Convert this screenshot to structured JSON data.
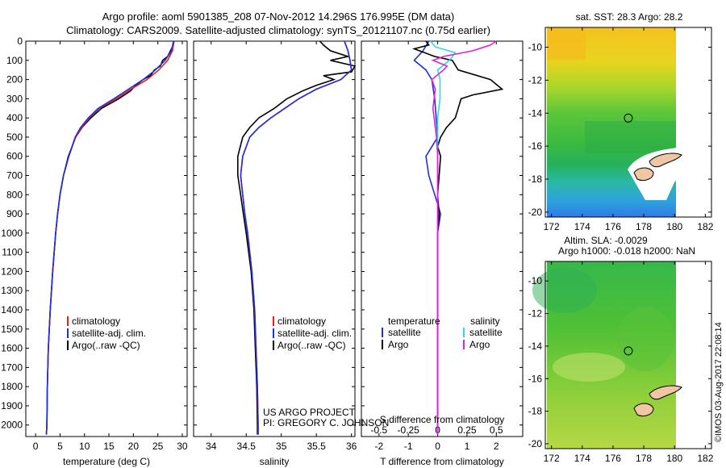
{
  "titles": {
    "line1": "Argo profile: aoml 5901385_208 07-Nov-2012 14.296S 176.995E (DM data)",
    "line2": "Climatology: CARS2009. Satellite-adjusted climatology: synTS_20121107.nc (0.75d earlier)"
  },
  "footer": {
    "project": "US ARGO PROJECT",
    "pi": "PI: GREGORY C. JOHNSON",
    "credit": "©IMOS 03-Aug-2017 22:08:14"
  },
  "depth_ticks": [
    "0",
    "100",
    "200",
    "300",
    "400",
    "500",
    "600",
    "700",
    "800",
    "900",
    "1000",
    "1100",
    "1200",
    "1300",
    "1400",
    "1500",
    "1600",
    "1700",
    "1800",
    "1900",
    "2000"
  ],
  "legend_tp": {
    "clim": "climatology",
    "sat": "satellite-adj. clim.",
    "argo": "Argo(..raw -QC)"
  },
  "legend_diff": {
    "temp_header": "temperature",
    "sal_header": "salinity",
    "satellite": "satellite",
    "argo": "Argo"
  },
  "colors": {
    "clim": "#e8201a",
    "sat": "#1f2ee0",
    "argo": "#000000",
    "sal_sat": "#33d8e6",
    "sal_argo": "#e020d8"
  },
  "chart_data": [
    {
      "type": "line",
      "xlabel": "temperature (deg C)",
      "ylabel": "",
      "xlim": [
        -2,
        31
      ],
      "ylim": [
        2060,
        0
      ],
      "x_ticks": [
        "0",
        "5",
        "10",
        "15",
        "20",
        "25",
        "30"
      ],
      "series": [
        {
          "name": "climatology",
          "depth": [
            0,
            50,
            100,
            150,
            200,
            250,
            300,
            350,
            400,
            450,
            500,
            600,
            700,
            800,
            900,
            1000,
            1200,
            1400,
            1600,
            1800,
            2000,
            2050
          ],
          "values": [
            28.3,
            28.0,
            27.0,
            25.2,
            22.8,
            19.5,
            16.5,
            13.0,
            11.0,
            9.4,
            8.2,
            6.8,
            5.7,
            5.0,
            4.5,
            4.1,
            3.5,
            3.0,
            2.6,
            2.4,
            2.3,
            2.2
          ]
        },
        {
          "name": "satellite-adj. clim.",
          "depth": [
            0,
            50,
            100,
            150,
            200,
            250,
            300,
            350,
            400,
            450,
            500,
            600,
            700,
            800,
            900,
            1000,
            1200,
            1400,
            1600,
            1800,
            2000,
            2050
          ],
          "values": [
            28.2,
            27.8,
            26.5,
            24.5,
            22.0,
            19.0,
            16.0,
            12.8,
            10.8,
            9.2,
            8.1,
            6.8,
            5.7,
            5.0,
            4.5,
            4.1,
            3.5,
            3.0,
            2.6,
            2.4,
            2.3,
            2.2
          ]
        },
        {
          "name": "Argo(..raw -QC)",
          "depth": [
            0,
            20,
            50,
            80,
            100,
            130,
            150,
            180,
            200,
            230,
            260,
            300,
            350,
            400,
            450,
            500,
            600,
            700,
            800,
            900,
            1000,
            1200,
            1400,
            1600,
            1800,
            2000,
            2050
          ],
          "values": [
            28.3,
            28.2,
            27.6,
            27.0,
            26.0,
            25.5,
            24.3,
            23.5,
            22.0,
            20.5,
            19.4,
            17.0,
            13.5,
            11.3,
            9.5,
            8.2,
            6.7,
            5.7,
            5.0,
            4.5,
            4.1,
            3.5,
            3.0,
            2.6,
            2.4,
            2.3,
            2.2
          ]
        }
      ]
    },
    {
      "type": "line",
      "xlabel": "salinity",
      "ylabel": "",
      "xlim": [
        33.75,
        36.05
      ],
      "ylim": [
        2060,
        0
      ],
      "x_ticks": [
        "34",
        "34.5",
        "35",
        "35.5",
        "36"
      ],
      "series": [
        {
          "name": "climatology",
          "depth": [
            0,
            50,
            100,
            150,
            200,
            250,
            300,
            350,
            400,
            450,
            500,
            600,
            700,
            800,
            900,
            1000,
            1200,
            1400,
            1600,
            1800,
            2000,
            2050
          ],
          "values": [
            35.9,
            35.95,
            35.98,
            36.0,
            35.85,
            35.5,
            35.25,
            35.05,
            34.85,
            34.68,
            34.55,
            34.45,
            34.42,
            34.45,
            34.48,
            34.52,
            34.58,
            34.62,
            34.64,
            34.66,
            34.67,
            34.67
          ]
        },
        {
          "name": "satellite-adj. clim.",
          "depth": [
            0,
            50,
            100,
            150,
            200,
            250,
            300,
            350,
            400,
            450,
            500,
            600,
            700,
            800,
            900,
            1000,
            1200,
            1400,
            1600,
            1800,
            2000,
            2050
          ],
          "values": [
            35.9,
            35.95,
            35.98,
            36.0,
            35.85,
            35.5,
            35.25,
            35.05,
            34.85,
            34.68,
            34.55,
            34.45,
            34.42,
            34.45,
            34.48,
            34.52,
            34.58,
            34.62,
            34.64,
            34.66,
            34.67,
            34.67
          ]
        },
        {
          "name": "Argo(..raw -QC)",
          "depth": [
            0,
            20,
            50,
            80,
            100,
            130,
            160,
            180,
            200,
            230,
            260,
            300,
            350,
            400,
            450,
            500,
            600,
            700,
            800,
            900,
            1000,
            1200,
            1400,
            1600,
            1800,
            2000,
            2050
          ],
          "values": [
            35.55,
            35.6,
            35.7,
            35.95,
            35.7,
            36.05,
            36.0,
            35.6,
            35.75,
            35.5,
            35.3,
            35.08,
            34.9,
            34.68,
            34.55,
            34.45,
            34.38,
            34.38,
            34.42,
            34.46,
            34.5,
            34.57,
            34.61,
            34.63,
            34.65,
            34.66,
            34.66
          ]
        }
      ]
    },
    {
      "type": "line",
      "xlabel": "T difference from climatology",
      "secondary_xlabel": "S difference from climatology",
      "ylabel": "",
      "xlim": [
        -2.6,
        2.9
      ],
      "ylim": [
        2060,
        0
      ],
      "x_ticks": [
        "-2",
        "-1",
        "0",
        "1",
        "2"
      ],
      "secondary_x_ticks": [
        "-0.5",
        "-0.25",
        "0",
        "0.25",
        "0.5"
      ],
      "series": [
        {
          "name": "temperature satellite",
          "depth": [
            0,
            50,
            100,
            150,
            200,
            300,
            400,
            500,
            550,
            600,
            700,
            800,
            900,
            1000,
            1200,
            1500,
            2000,
            2050
          ],
          "values": [
            -0.3,
            -0.5,
            -0.8,
            -0.4,
            -0.2,
            -0.1,
            -0.05,
            0.0,
            -0.2,
            -0.4,
            -0.3,
            -0.1,
            0.1,
            0.0,
            0.0,
            0.0,
            0.0,
            0.0
          ]
        },
        {
          "name": "temperature Argo",
          "depth": [
            0,
            20,
            40,
            80,
            100,
            150,
            200,
            250,
            280,
            300,
            350,
            400,
            450,
            500,
            550,
            600,
            700,
            800,
            900,
            1000,
            1200,
            1500,
            2000,
            2050
          ],
          "values": [
            -0.4,
            -0.3,
            -0.8,
            -0.1,
            0.5,
            0.7,
            1.8,
            2.2,
            1.2,
            0.8,
            0.7,
            0.6,
            0.3,
            0.1,
            0.0,
            0.1,
            0.05,
            0.0,
            0.05,
            0.0,
            0.0,
            0.0,
            0.0,
            0.0
          ]
        },
        {
          "name": "salinity satellite",
          "depth": [
            0,
            30,
            60,
            100,
            150,
            200,
            300,
            400,
            500,
            600,
            800,
            1000,
            1500,
            2000,
            2050
          ],
          "values": [
            -0.06,
            -0.02,
            0.15,
            0.1,
            0.0,
            0.02,
            0.02,
            0.0,
            0.0,
            0.0,
            0.0,
            0.0,
            0.0,
            0.0,
            0.0
          ]
        },
        {
          "name": "salinity Argo",
          "depth": [
            0,
            20,
            50,
            80,
            100,
            130,
            150,
            200,
            250,
            300,
            350,
            400,
            450,
            500,
            600,
            800,
            1000,
            1500,
            2000,
            2050
          ],
          "values": [
            0.5,
            0.45,
            0.3,
            0.05,
            -0.04,
            0.08,
            0.05,
            -0.05,
            -0.02,
            -0.03,
            -0.04,
            -0.03,
            -0.02,
            -0.01,
            0.0,
            0.0,
            0.0,
            0.0,
            0.0,
            0.0
          ]
        }
      ]
    },
    {
      "type": "heatmap",
      "title": "sat. SST: 28.3 Argo: 28.2",
      "x_ticks": [
        "172",
        "174",
        "176",
        "178",
        "180",
        "182"
      ],
      "y_ticks": [
        "-10",
        "-12",
        "-14",
        "-16",
        "-18",
        "-20"
      ],
      "xlim": [
        171.6,
        182.4
      ],
      "ylim": [
        -20.3,
        -8.8
      ],
      "profile_lon": 176.995,
      "profile_lat": -14.296
    },
    {
      "type": "heatmap",
      "title_line1": "Altim. SLA: -0.0029",
      "title_line2": "Argo h1000: -0.018 h2000: NaN",
      "x_ticks": [
        "172",
        "174",
        "176",
        "178",
        "180",
        "182"
      ],
      "y_ticks": [
        "-10",
        "-12",
        "-14",
        "-16",
        "-18",
        "-20"
      ],
      "xlim": [
        171.6,
        182.4
      ],
      "ylim": [
        -20.3,
        -8.8
      ],
      "profile_lon": 176.995,
      "profile_lat": -14.296
    }
  ]
}
